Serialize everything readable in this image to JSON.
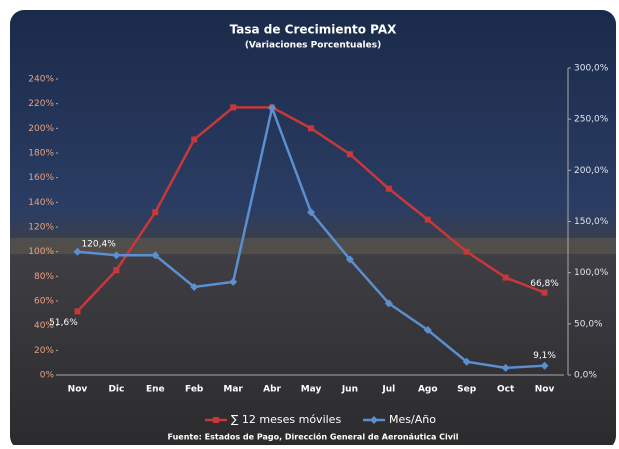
{
  "chart_data": {
    "type": "line",
    "title": "Tasa de Crecimiento PAX",
    "subtitle": "(Variaciones Porcentuales)",
    "categories": [
      "Nov",
      "Dic",
      "Ene",
      "Feb",
      "Mar",
      "Abr",
      "May",
      "Jun",
      "Jul",
      "Ago",
      "Sep",
      "Oct",
      "Nov"
    ],
    "series": [
      {
        "name": "∑ 12 meses móviles",
        "color": "#c8383a",
        "values": [
          51.6,
          85,
          132,
          191,
          217,
          217,
          200,
          179,
          151,
          126,
          100,
          79,
          66.8
        ],
        "value_labels": [
          "51,6%",
          null,
          null,
          null,
          null,
          null,
          null,
          null,
          null,
          null,
          null,
          null,
          "66,8%"
        ]
      },
      {
        "name": "Mes/Año",
        "color": "#5b8fd0",
        "axis": "y2",
        "values": [
          120.4,
          117,
          117,
          86,
          91,
          261,
          159,
          113,
          70,
          44,
          13,
          7,
          9.1
        ],
        "value_labels": [
          "120,4%",
          null,
          null,
          null,
          null,
          null,
          null,
          null,
          null,
          null,
          null,
          null,
          "9,1%"
        ]
      }
    ],
    "ylim": [
      0,
      240
    ],
    "yticks": [
      {
        "value": 0,
        "label": "0%"
      },
      {
        "value": 20,
        "label": "20%"
      },
      {
        "value": 40,
        "label": "40%"
      },
      {
        "value": 60,
        "label": "60%"
      },
      {
        "value": 80,
        "label": "80%"
      },
      {
        "value": 100,
        "label": "100%"
      },
      {
        "value": 120,
        "label": "120%"
      },
      {
        "value": 140,
        "label": "140%"
      },
      {
        "value": 160,
        "label": "160%"
      },
      {
        "value": 180,
        "label": "180%"
      },
      {
        "value": 200,
        "label": "200%"
      },
      {
        "value": 220,
        "label": "220%"
      },
      {
        "value": 240,
        "label": "240%"
      }
    ],
    "y2lim": [
      0,
      300
    ],
    "y2ticks": [
      {
        "value": 0,
        "label": "0,0%"
      },
      {
        "value": 50,
        "label": "50,0%"
      },
      {
        "value": 100,
        "label": "100,0%"
      },
      {
        "value": 150,
        "label": "150,0%"
      },
      {
        "value": 200,
        "label": "200,0%"
      },
      {
        "value": 250,
        "label": "250,0%"
      },
      {
        "value": 300,
        "label": "300,0%"
      }
    ],
    "source": "Fuente: Estados de Pago, Dirección General de Aeronáutica Civil"
  }
}
